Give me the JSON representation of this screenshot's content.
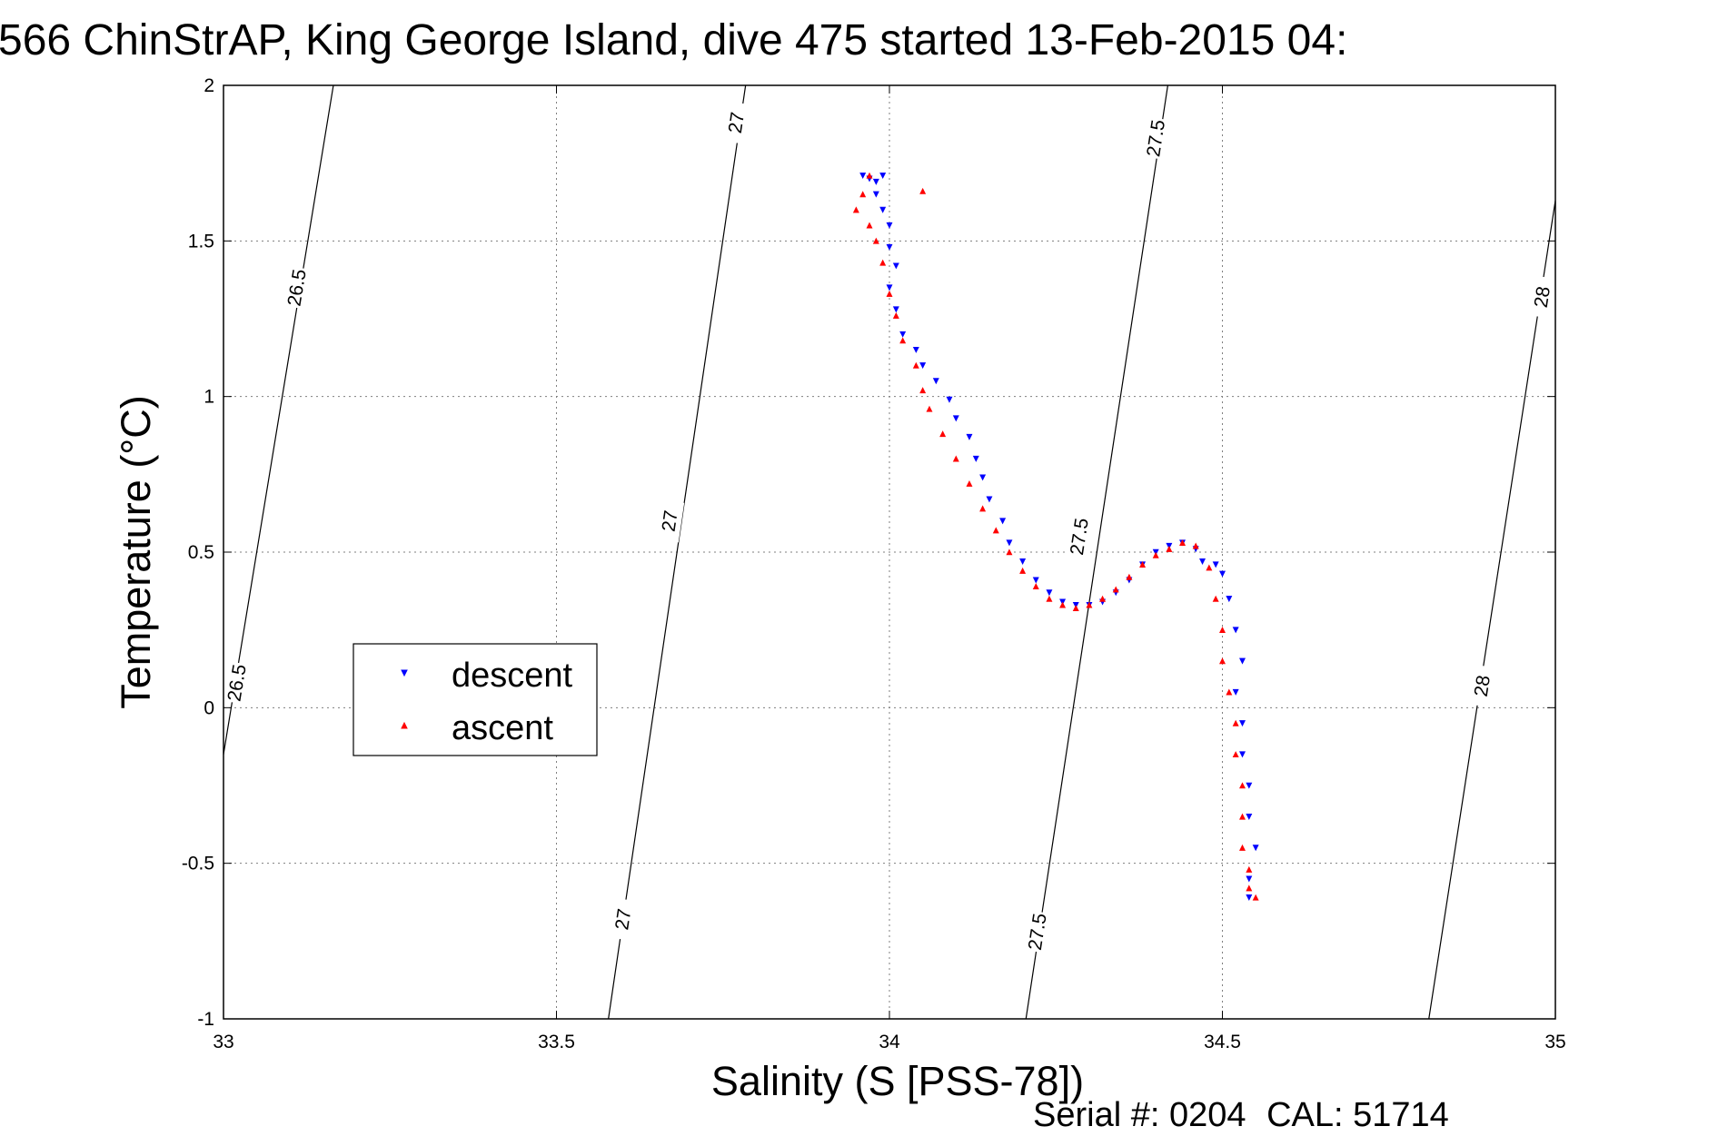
{
  "chart_data": {
    "type": "scatter",
    "title": "566 ChinStrAP, King George Island, dive 475 started 13-Feb-2015 04:",
    "xlabel": "Salinity (S [PSS-78])",
    "ylabel": "Temperature (°C)",
    "xlim": [
      33,
      35
    ],
    "ylim": [
      -1,
      2
    ],
    "xticks": [
      33,
      33.5,
      34,
      34.5,
      35
    ],
    "xtick_labels": [
      "33",
      "33.5",
      "34",
      "34.5",
      "35"
    ],
    "yticks": [
      -1,
      -0.5,
      0,
      0.5,
      1,
      1.5,
      2
    ],
    "ytick_labels": [
      "-1",
      "-0.5",
      "0",
      "0.5",
      "1",
      "1.5",
      "2"
    ],
    "grid": true,
    "legend_position": "middle-left",
    "density_contours": [
      {
        "value": 26.5,
        "points": [
          [
            33.0,
            -0.15
          ],
          [
            33.165,
            2.0
          ]
        ],
        "labels": [
          {
            "text": "26.5",
            "x": 33.02,
            "y": 0.08
          },
          {
            "text": "26.5",
            "x": 33.11,
            "y": 1.35
          }
        ]
      },
      {
        "value": 27,
        "points": [
          [
            33.578,
            -1.0
          ],
          [
            33.784,
            2.0
          ]
        ],
        "labels": [
          {
            "text": "27",
            "x": 33.6,
            "y": -0.68
          },
          {
            "text": "27",
            "x": 33.67,
            "y": 0.6
          },
          {
            "text": "27",
            "x": 33.77,
            "y": 1.88
          }
        ]
      },
      {
        "value": 27.5,
        "points": [
          [
            34.205,
            -1.0
          ],
          [
            34.418,
            2.0
          ]
        ],
        "labels": [
          {
            "text": "27.5",
            "x": 34.222,
            "y": -0.72
          },
          {
            "text": "27.5",
            "x": 34.285,
            "y": 0.55
          },
          {
            "text": "27.5",
            "x": 34.4,
            "y": 1.83
          }
        ]
      },
      {
        "value": 28,
        "points": [
          [
            34.81,
            -1.0
          ],
          [
            35.0,
            1.63
          ]
        ],
        "labels": [
          {
            "text": "28",
            "x": 34.89,
            "y": 0.07
          },
          {
            "text": "28",
            "x": 34.98,
            "y": 1.32
          }
        ]
      }
    ],
    "series": [
      {
        "name": "descent",
        "color": "#0000ff",
        "marker": "triangle-down",
        "points": [
          [
            33.96,
            1.71
          ],
          [
            33.97,
            1.7
          ],
          [
            33.98,
            1.69
          ],
          [
            33.99,
            1.71
          ],
          [
            33.98,
            1.65
          ],
          [
            33.99,
            1.6
          ],
          [
            34.0,
            1.55
          ],
          [
            34.0,
            1.48
          ],
          [
            34.01,
            1.42
          ],
          [
            34.0,
            1.35
          ],
          [
            34.01,
            1.28
          ],
          [
            34.02,
            1.2
          ],
          [
            34.04,
            1.15
          ],
          [
            34.05,
            1.1
          ],
          [
            34.07,
            1.05
          ],
          [
            34.09,
            0.99
          ],
          [
            34.1,
            0.93
          ],
          [
            34.12,
            0.87
          ],
          [
            34.13,
            0.8
          ],
          [
            34.14,
            0.74
          ],
          [
            34.15,
            0.67
          ],
          [
            34.17,
            0.6
          ],
          [
            34.18,
            0.53
          ],
          [
            34.2,
            0.47
          ],
          [
            34.22,
            0.41
          ],
          [
            34.24,
            0.37
          ],
          [
            34.26,
            0.34
          ],
          [
            34.28,
            0.33
          ],
          [
            34.3,
            0.33
          ],
          [
            34.32,
            0.34
          ],
          [
            34.34,
            0.37
          ],
          [
            34.36,
            0.41
          ],
          [
            34.38,
            0.46
          ],
          [
            34.4,
            0.5
          ],
          [
            34.42,
            0.52
          ],
          [
            34.44,
            0.53
          ],
          [
            34.46,
            0.51
          ],
          [
            34.47,
            0.47
          ],
          [
            34.49,
            0.46
          ],
          [
            34.5,
            0.43
          ],
          [
            34.51,
            0.35
          ],
          [
            34.52,
            0.25
          ],
          [
            34.53,
            0.15
          ],
          [
            34.52,
            0.05
          ],
          [
            34.53,
            -0.05
          ],
          [
            34.53,
            -0.15
          ],
          [
            34.54,
            -0.25
          ],
          [
            34.54,
            -0.35
          ],
          [
            34.55,
            -0.45
          ],
          [
            34.54,
            -0.55
          ],
          [
            34.54,
            -0.61
          ]
        ]
      },
      {
        "name": "ascent",
        "color": "#ff0000",
        "marker": "triangle-up",
        "points": [
          [
            33.97,
            1.71
          ],
          [
            33.96,
            1.65
          ],
          [
            33.95,
            1.6
          ],
          [
            33.97,
            1.55
          ],
          [
            33.98,
            1.5
          ],
          [
            33.99,
            1.43
          ],
          [
            34.0,
            1.33
          ],
          [
            34.01,
            1.26
          ],
          [
            34.02,
            1.18
          ],
          [
            34.04,
            1.1
          ],
          [
            34.05,
            1.02
          ],
          [
            34.06,
            0.96
          ],
          [
            34.08,
            0.88
          ],
          [
            34.1,
            0.8
          ],
          [
            34.12,
            0.72
          ],
          [
            34.14,
            0.64
          ],
          [
            34.16,
            0.57
          ],
          [
            34.18,
            0.5
          ],
          [
            34.2,
            0.44
          ],
          [
            34.22,
            0.39
          ],
          [
            34.24,
            0.35
          ],
          [
            34.26,
            0.33
          ],
          [
            34.28,
            0.32
          ],
          [
            34.3,
            0.33
          ],
          [
            34.32,
            0.35
          ],
          [
            34.34,
            0.38
          ],
          [
            34.36,
            0.42
          ],
          [
            34.38,
            0.46
          ],
          [
            34.4,
            0.49
          ],
          [
            34.42,
            0.51
          ],
          [
            34.44,
            0.53
          ],
          [
            34.46,
            0.52
          ],
          [
            34.48,
            0.45
          ],
          [
            34.49,
            0.35
          ],
          [
            34.5,
            0.25
          ],
          [
            34.5,
            0.15
          ],
          [
            34.51,
            0.05
          ],
          [
            34.52,
            -0.05
          ],
          [
            34.52,
            -0.15
          ],
          [
            34.53,
            -0.25
          ],
          [
            34.53,
            -0.35
          ],
          [
            34.53,
            -0.45
          ],
          [
            34.54,
            -0.52
          ],
          [
            34.54,
            -0.58
          ],
          [
            34.55,
            -0.61
          ],
          [
            34.05,
            1.66
          ]
        ]
      }
    ]
  },
  "footer": {
    "serial_label": "Serial #:",
    "serial_value": "0204",
    "cal_label": "CAL:",
    "cal_value": "51714"
  }
}
